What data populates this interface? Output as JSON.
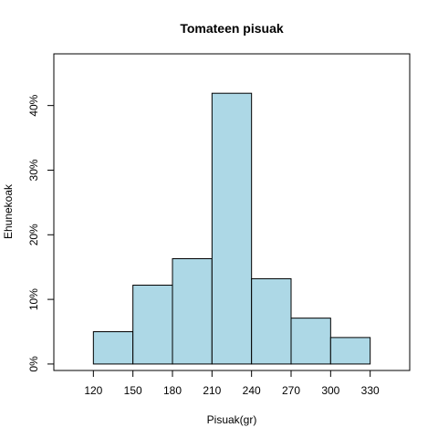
{
  "chart_data": {
    "type": "bar",
    "title": "Tomateen pisuak",
    "xlabel": "Pisuak(gr)",
    "ylabel": "Ehunekoak",
    "bin_edges": [
      120,
      150,
      180,
      210,
      240,
      270,
      300,
      330
    ],
    "values": [
      5,
      12.2,
      16.3,
      41.9,
      13.2,
      7.1,
      4.1
    ],
    "xlim": [
      90,
      360
    ],
    "ylim": [
      -1,
      48
    ],
    "x_ticks": [
      120,
      150,
      180,
      210,
      240,
      270,
      300,
      330
    ],
    "y_ticks": [
      0,
      10,
      20,
      30,
      40
    ],
    "y_tick_labels": [
      "0%",
      "10%",
      "20%",
      "30%",
      "40%"
    ],
    "bar_color": "#add8e6",
    "grid": false,
    "legend": "none"
  }
}
